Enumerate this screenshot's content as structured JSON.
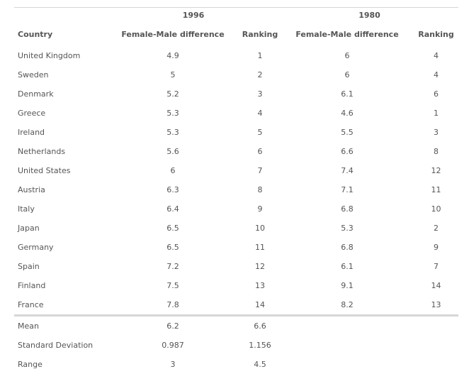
{
  "table": {
    "years": [
      "1996",
      "1980"
    ],
    "headers": {
      "country": "Country",
      "diff_1996": "Female-Male difference",
      "rank_1996": "Ranking",
      "diff_1980": "Female-Male difference",
      "rank_1980": "Ranking"
    },
    "rows": [
      {
        "country": "United Kingdom",
        "diff_1996": "4.9",
        "rank_1996": "1",
        "diff_1980": "6",
        "rank_1980": "4"
      },
      {
        "country": "Sweden",
        "diff_1996": "5",
        "rank_1996": "2",
        "diff_1980": "6",
        "rank_1980": "4"
      },
      {
        "country": "Denmark",
        "diff_1996": "5.2",
        "rank_1996": "3",
        "diff_1980": "6.1",
        "rank_1980": "6"
      },
      {
        "country": "Greece",
        "diff_1996": "5.3",
        "rank_1996": "4",
        "diff_1980": "4.6",
        "rank_1980": "1"
      },
      {
        "country": "Ireland",
        "diff_1996": "5.3",
        "rank_1996": "5",
        "diff_1980": "5.5",
        "rank_1980": "3"
      },
      {
        "country": "Netherlands",
        "diff_1996": "5.6",
        "rank_1996": "6",
        "diff_1980": "6.6",
        "rank_1980": "8"
      },
      {
        "country": "United States",
        "diff_1996": "6",
        "rank_1996": "7",
        "diff_1980": "7.4",
        "rank_1980": "12"
      },
      {
        "country": "Austria",
        "diff_1996": "6.3",
        "rank_1996": "8",
        "diff_1980": "7.1",
        "rank_1980": "11"
      },
      {
        "country": "Italy",
        "diff_1996": "6.4",
        "rank_1996": "9",
        "diff_1980": "6.8",
        "rank_1980": "10"
      },
      {
        "country": "Japan",
        "diff_1996": "6.5",
        "rank_1996": "10",
        "diff_1980": "5.3",
        "rank_1980": "2"
      },
      {
        "country": "Germany",
        "diff_1996": "6.5",
        "rank_1996": "11",
        "diff_1980": "6.8",
        "rank_1980": "9"
      },
      {
        "country": "Spain",
        "diff_1996": "7.2",
        "rank_1996": "12",
        "diff_1980": "6.1",
        "rank_1980": "7"
      },
      {
        "country": "Finland",
        "diff_1996": "7.5",
        "rank_1996": "13",
        "diff_1980": "9.1",
        "rank_1980": "14"
      },
      {
        "country": "France",
        "diff_1996": "7.8",
        "rank_1996": "14",
        "diff_1980": "8.2",
        "rank_1980": "13"
      }
    ],
    "stats": [
      {
        "label": "Mean",
        "col2": "6.2",
        "col3": "6.6"
      },
      {
        "label": "Standard Deviation",
        "col2": "0.987",
        "col3": "1.156"
      },
      {
        "label": "Range",
        "col2": "3",
        "col3": "4.5"
      }
    ]
  }
}
